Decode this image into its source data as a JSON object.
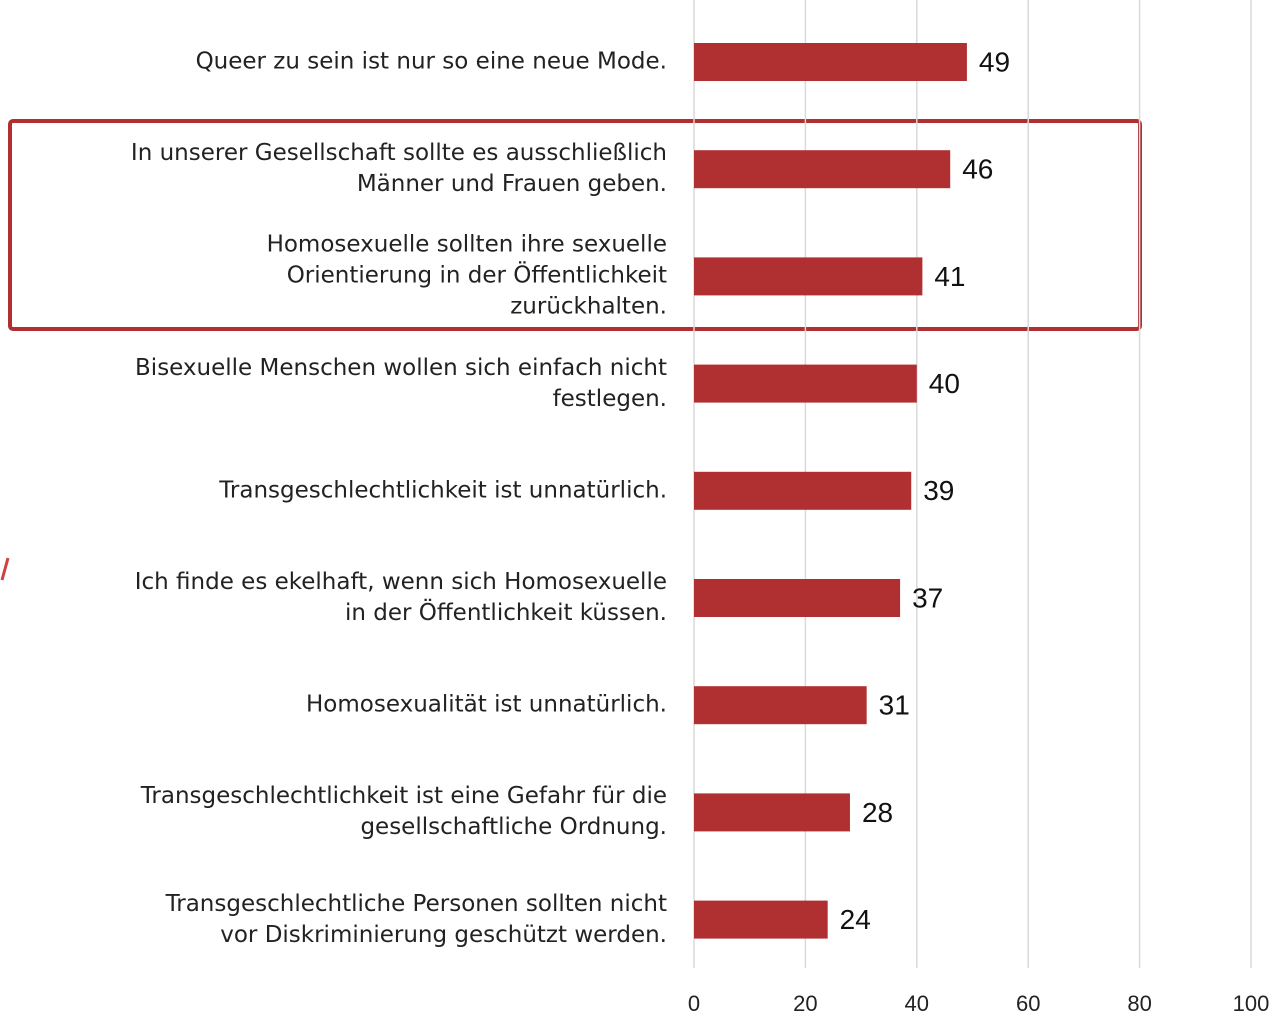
{
  "chart_data": {
    "type": "barh",
    "categories": [
      "Queer zu sein ist nur so eine neue Mode.",
      "In unserer Gesellschaft sollte es ausschließlich\nMänner und Frauen geben.",
      "Homosexuelle sollten ihre sexuelle\nOrientierung in der Öffentlichkeit\nzurückhalten.",
      "Bisexuelle Menschen wollen sich einfach nicht\nfestlegen.",
      "Transgeschlechtlichkeit ist unnatürlich.",
      "Ich finde es ekelhaft, wenn sich Homosexuelle\nin der Öffentlichkeit küssen.",
      "Homosexualität ist unnatürlich.",
      "Transgeschlechtlichkeit ist eine Gefahr für die\ngesellschaftliche Ordnung.",
      "Transgeschlechtliche Personen sollten nicht\nvor Diskriminierung geschützt werden."
    ],
    "values": [
      49,
      46,
      41,
      40,
      39,
      37,
      31,
      28,
      24
    ],
    "color": "#b03032",
    "xlim": [
      0,
      100
    ],
    "xticks": [
      0,
      20,
      40,
      60,
      80,
      100
    ],
    "grid": true
  }
}
